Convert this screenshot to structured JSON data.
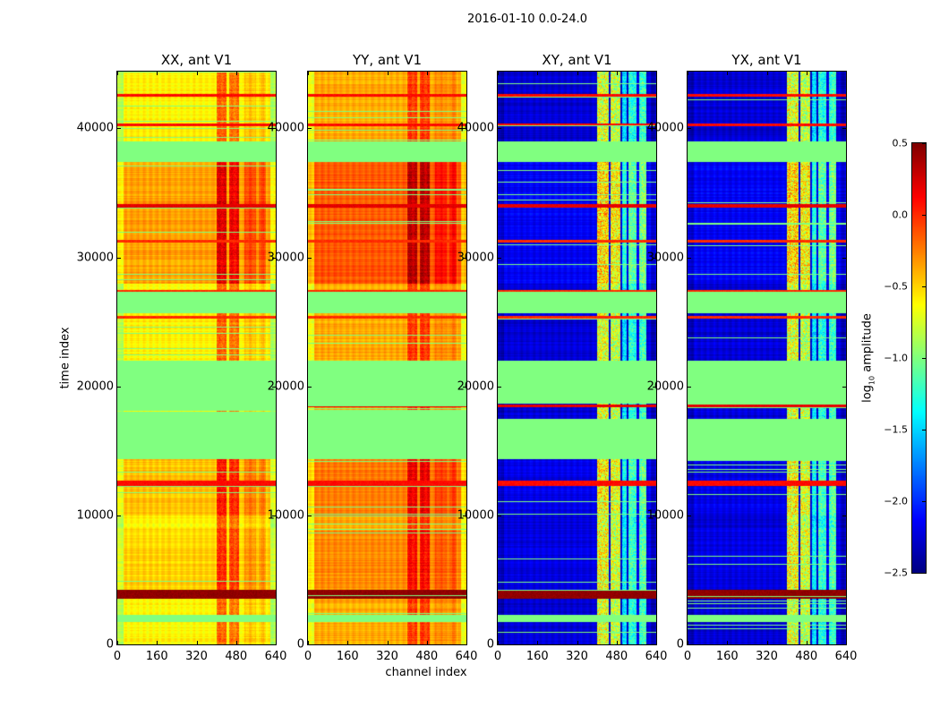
{
  "chart_data": {
    "type": "heatmap",
    "suptitle": "2016-01-10 0.0-24.0",
    "xlabel": "channel index",
    "ylabel": "time index",
    "xlim": [
      0,
      640
    ],
    "ylim": [
      0,
      44400
    ],
    "xticks": [
      "0",
      "160",
      "320",
      "480",
      "640"
    ],
    "xtick_values": [
      0,
      160,
      320,
      480,
      640
    ],
    "yticks": [
      "0",
      "10000",
      "20000",
      "30000",
      "40000"
    ],
    "ytick_values": [
      0,
      10000,
      20000,
      30000,
      40000
    ],
    "colormap": "jet",
    "colorbar": {
      "label_prefix": "log",
      "label_sub": "10",
      "label_suffix": " amplitude",
      "range": [
        -2.5,
        0.5
      ],
      "ticks": [
        "0.5",
        "0.0",
        "−0.5",
        "−1.0",
        "−1.5",
        "−2.0",
        "−2.5"
      ],
      "tick_values": [
        0.5,
        0.0,
        -0.5,
        -1.0,
        -1.5,
        -2.0,
        -2.5
      ]
    },
    "flagged_value": -1.0,
    "panels": [
      {
        "title": "XX, ant V1",
        "base": -0.6,
        "active_channels": [
          [
            400,
            440,
            0.45
          ],
          [
            450,
            490,
            0.4
          ],
          [
            510,
            560,
            0.15
          ],
          [
            570,
            600,
            0.15
          ]
        ],
        "edge_drop": -0.25
      },
      {
        "title": "YY, ant V1",
        "base": -0.38,
        "active_channels": [
          [
            400,
            440,
            0.35
          ],
          [
            450,
            490,
            0.35
          ],
          [
            510,
            560,
            0.1
          ],
          [
            570,
            600,
            0.12
          ]
        ],
        "edge_drop": -0.3
      },
      {
        "title": "XY, ant V1",
        "base": -2.25,
        "active_channels": [
          [
            400,
            445,
            1.6
          ],
          [
            455,
            495,
            1.5
          ],
          [
            500,
            520,
            0.8
          ],
          [
            525,
            560,
            1.0
          ],
          [
            570,
            600,
            1.1
          ]
        ],
        "edge_drop": -0.1
      },
      {
        "title": "YX, ant V1",
        "base": -2.25,
        "active_channels": [
          [
            400,
            445,
            1.6
          ],
          [
            455,
            495,
            1.5
          ],
          [
            500,
            520,
            0.8
          ],
          [
            525,
            560,
            1.0
          ],
          [
            570,
            600,
            1.1
          ]
        ],
        "edge_drop": -0.1
      }
    ],
    "flagged_bands": [
      [
        37400,
        39000
      ],
      [
        25700,
        27400
      ],
      [
        14400,
        17500
      ],
      [
        18700,
        22000
      ],
      [
        1800,
        2300
      ]
    ],
    "hot_lines": [
      [
        42500,
        42700,
        0.1
      ],
      [
        40200,
        40400,
        0.1
      ],
      [
        33900,
        34200,
        0.2
      ],
      [
        31200,
        31400,
        0.0
      ],
      [
        27300,
        27500,
        0.0
      ],
      [
        25300,
        25500,
        0.0
      ],
      [
        12300,
        12700,
        0.1
      ],
      [
        18400,
        18600,
        0.2
      ],
      [
        16500,
        16650,
        0.0
      ]
    ],
    "hot_bands": [
      [
        3600,
        4300,
        0.45
      ]
    ],
    "bright_epochs": [
      [
        28000,
        37400,
        0.25
      ],
      [
        10000,
        14400,
        0.15
      ],
      [
        4300,
        9000,
        0.1
      ]
    ]
  }
}
